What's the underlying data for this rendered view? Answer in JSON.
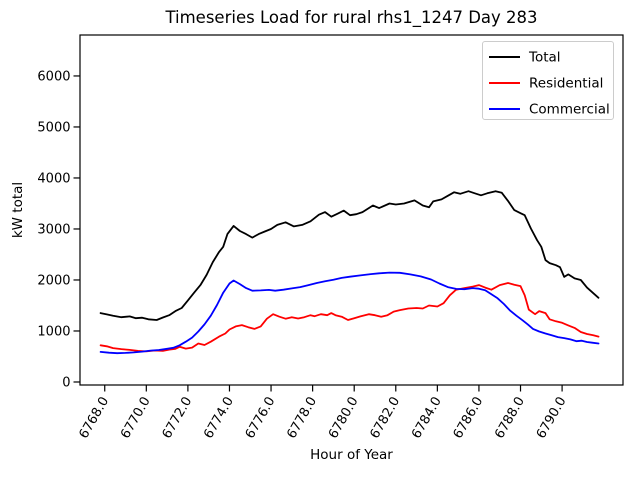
{
  "figure": {
    "title": "Timeseries Load for rural rhs1_1247  Day 283"
  },
  "chart_data": {
    "type": "line",
    "title": "Timeseries Load for rural rhs1_1247  Day 283",
    "xlabel": "Hour of Year",
    "ylabel": "kW total",
    "xlim": [
      6766.81,
      6792.93
    ],
    "ylim": [
      -59,
      6803
    ],
    "grid": false,
    "x_ticks": [
      6768,
      6770,
      6772,
      6774,
      6776,
      6778,
      6780,
      6782,
      6784,
      6786,
      6788,
      6790
    ],
    "x_tick_labels": [
      "6768.0",
      "6770.0",
      "6772.0",
      "6774.0",
      "6776.0",
      "6778.0",
      "6780.0",
      "6782.0",
      "6784.0",
      "6786.0",
      "6788.0",
      "6790.0"
    ],
    "y_ticks": [
      0,
      1000,
      2000,
      3000,
      4000,
      5000,
      6000
    ],
    "y_tick_labels": [
      "0",
      "1000",
      "2000",
      "3000",
      "4000",
      "5000",
      "6000"
    ],
    "legend": {
      "position": "upper right",
      "entries": [
        {
          "label": "Total",
          "color": "#000000"
        },
        {
          "label": "Residential",
          "color": "#ff0000"
        },
        {
          "label": "Commercial",
          "color": "#0000ff"
        }
      ]
    },
    "series": [
      {
        "name": "Total",
        "color": "#000000",
        "points": [
          [
            6767.8,
            1350
          ],
          [
            6768.1,
            1325
          ],
          [
            6768.4,
            1300
          ],
          [
            6768.8,
            1270
          ],
          [
            6769.2,
            1285
          ],
          [
            6769.5,
            1250
          ],
          [
            6769.8,
            1260
          ],
          [
            6770.1,
            1230
          ],
          [
            6770.5,
            1215
          ],
          [
            6770.8,
            1265
          ],
          [
            6771.1,
            1310
          ],
          [
            6771.4,
            1390
          ],
          [
            6771.7,
            1450
          ],
          [
            6772.0,
            1600
          ],
          [
            6772.3,
            1750
          ],
          [
            6772.6,
            1900
          ],
          [
            6772.9,
            2100
          ],
          [
            6773.2,
            2350
          ],
          [
            6773.5,
            2550
          ],
          [
            6773.7,
            2650
          ],
          [
            6773.9,
            2900
          ],
          [
            6774.2,
            3060
          ],
          [
            6774.5,
            2960
          ],
          [
            6774.8,
            2900
          ],
          [
            6775.1,
            2830
          ],
          [
            6775.4,
            2900
          ],
          [
            6775.7,
            2950
          ],
          [
            6776.0,
            3000
          ],
          [
            6776.3,
            3080
          ],
          [
            6776.7,
            3130
          ],
          [
            6777.1,
            3050
          ],
          [
            6777.5,
            3080
          ],
          [
            6777.9,
            3150
          ],
          [
            6778.3,
            3280
          ],
          [
            6778.6,
            3330
          ],
          [
            6778.9,
            3240
          ],
          [
            6779.2,
            3300
          ],
          [
            6779.5,
            3360
          ],
          [
            6779.8,
            3270
          ],
          [
            6780.1,
            3290
          ],
          [
            6780.4,
            3330
          ],
          [
            6780.9,
            3460
          ],
          [
            6781.2,
            3410
          ],
          [
            6781.7,
            3500
          ],
          [
            6782.0,
            3480
          ],
          [
            6782.4,
            3500
          ],
          [
            6782.9,
            3560
          ],
          [
            6783.3,
            3460
          ],
          [
            6783.6,
            3425
          ],
          [
            6783.8,
            3540
          ],
          [
            6784.2,
            3580
          ],
          [
            6784.5,
            3650
          ],
          [
            6784.8,
            3720
          ],
          [
            6785.1,
            3690
          ],
          [
            6785.5,
            3740
          ],
          [
            6785.8,
            3700
          ],
          [
            6786.1,
            3660
          ],
          [
            6786.4,
            3700
          ],
          [
            6786.8,
            3740
          ],
          [
            6787.1,
            3710
          ],
          [
            6787.4,
            3550
          ],
          [
            6787.7,
            3370
          ],
          [
            6788.0,
            3310
          ],
          [
            6788.2,
            3270
          ],
          [
            6788.5,
            3010
          ],
          [
            6788.8,
            2780
          ],
          [
            6789.0,
            2650
          ],
          [
            6789.2,
            2390
          ],
          [
            6789.4,
            2330
          ],
          [
            6789.7,
            2290
          ],
          [
            6789.9,
            2250
          ],
          [
            6790.1,
            2060
          ],
          [
            6790.3,
            2110
          ],
          [
            6790.6,
            2030
          ],
          [
            6790.9,
            2000
          ],
          [
            6791.2,
            1850
          ],
          [
            6791.5,
            1740
          ],
          [
            6791.75,
            1650
          ]
        ]
      },
      {
        "name": "Residential",
        "color": "#ff0000",
        "points": [
          [
            6767.8,
            720
          ],
          [
            6768.1,
            700
          ],
          [
            6768.4,
            665
          ],
          [
            6768.8,
            645
          ],
          [
            6769.2,
            630
          ],
          [
            6769.6,
            610
          ],
          [
            6770.0,
            600
          ],
          [
            6770.4,
            618
          ],
          [
            6770.8,
            610
          ],
          [
            6771.1,
            635
          ],
          [
            6771.4,
            650
          ],
          [
            6771.6,
            690
          ],
          [
            6771.9,
            655
          ],
          [
            6772.2,
            675
          ],
          [
            6772.5,
            755
          ],
          [
            6772.8,
            725
          ],
          [
            6773.1,
            790
          ],
          [
            6773.5,
            890
          ],
          [
            6773.8,
            950
          ],
          [
            6774.0,
            1030
          ],
          [
            6774.3,
            1090
          ],
          [
            6774.6,
            1115
          ],
          [
            6774.9,
            1075
          ],
          [
            6775.2,
            1040
          ],
          [
            6775.5,
            1090
          ],
          [
            6775.8,
            1240
          ],
          [
            6776.1,
            1330
          ],
          [
            6776.4,
            1280
          ],
          [
            6776.7,
            1240
          ],
          [
            6777.0,
            1270
          ],
          [
            6777.3,
            1245
          ],
          [
            6777.6,
            1270
          ],
          [
            6777.9,
            1310
          ],
          [
            6778.1,
            1290
          ],
          [
            6778.4,
            1330
          ],
          [
            6778.7,
            1310
          ],
          [
            6778.9,
            1350
          ],
          [
            6779.1,
            1310
          ],
          [
            6779.4,
            1280
          ],
          [
            6779.7,
            1215
          ],
          [
            6780.0,
            1250
          ],
          [
            6780.3,
            1285
          ],
          [
            6780.7,
            1330
          ],
          [
            6781.0,
            1310
          ],
          [
            6781.3,
            1280
          ],
          [
            6781.6,
            1310
          ],
          [
            6781.9,
            1380
          ],
          [
            6782.2,
            1410
          ],
          [
            6782.6,
            1440
          ],
          [
            6783.0,
            1450
          ],
          [
            6783.3,
            1440
          ],
          [
            6783.6,
            1500
          ],
          [
            6784.0,
            1480
          ],
          [
            6784.3,
            1545
          ],
          [
            6784.6,
            1700
          ],
          [
            6784.9,
            1810
          ],
          [
            6785.3,
            1840
          ],
          [
            6785.7,
            1870
          ],
          [
            6786.0,
            1900
          ],
          [
            6786.3,
            1850
          ],
          [
            6786.6,
            1810
          ],
          [
            6787.0,
            1900
          ],
          [
            6787.4,
            1940
          ],
          [
            6787.7,
            1905
          ],
          [
            6788.0,
            1880
          ],
          [
            6788.2,
            1700
          ],
          [
            6788.4,
            1420
          ],
          [
            6788.7,
            1330
          ],
          [
            6788.9,
            1390
          ],
          [
            6789.2,
            1350
          ],
          [
            6789.4,
            1230
          ],
          [
            6789.7,
            1190
          ],
          [
            6790.0,
            1160
          ],
          [
            6790.3,
            1110
          ],
          [
            6790.6,
            1060
          ],
          [
            6790.9,
            980
          ],
          [
            6791.2,
            940
          ],
          [
            6791.5,
            915
          ],
          [
            6791.75,
            890
          ]
        ]
      },
      {
        "name": "Commercial",
        "color": "#0000ff",
        "points": [
          [
            6767.8,
            590
          ],
          [
            6768.2,
            575
          ],
          [
            6768.6,
            565
          ],
          [
            6769.0,
            570
          ],
          [
            6769.4,
            580
          ],
          [
            6769.8,
            595
          ],
          [
            6770.2,
            615
          ],
          [
            6770.6,
            628
          ],
          [
            6771.0,
            650
          ],
          [
            6771.3,
            670
          ],
          [
            6771.6,
            720
          ],
          [
            6771.9,
            790
          ],
          [
            6772.2,
            870
          ],
          [
            6772.5,
            990
          ],
          [
            6772.8,
            1130
          ],
          [
            6773.1,
            1300
          ],
          [
            6773.4,
            1510
          ],
          [
            6773.7,
            1750
          ],
          [
            6774.0,
            1930
          ],
          [
            6774.2,
            1990
          ],
          [
            6774.5,
            1920
          ],
          [
            6774.8,
            1840
          ],
          [
            6775.1,
            1790
          ],
          [
            6775.5,
            1795
          ],
          [
            6775.9,
            1805
          ],
          [
            6776.2,
            1790
          ],
          [
            6776.6,
            1810
          ],
          [
            6777.0,
            1835
          ],
          [
            6777.4,
            1860
          ],
          [
            6777.8,
            1900
          ],
          [
            6778.2,
            1940
          ],
          [
            6778.6,
            1975
          ],
          [
            6779.0,
            2005
          ],
          [
            6779.4,
            2040
          ],
          [
            6779.8,
            2065
          ],
          [
            6780.3,
            2090
          ],
          [
            6780.8,
            2115
          ],
          [
            6781.2,
            2130
          ],
          [
            6781.7,
            2145
          ],
          [
            6782.2,
            2140
          ],
          [
            6782.7,
            2110
          ],
          [
            6783.2,
            2070
          ],
          [
            6783.7,
            2010
          ],
          [
            6784.1,
            1930
          ],
          [
            6784.5,
            1860
          ],
          [
            6784.9,
            1825
          ],
          [
            6785.3,
            1820
          ],
          [
            6785.7,
            1840
          ],
          [
            6786.0,
            1830
          ],
          [
            6786.3,
            1800
          ],
          [
            6786.6,
            1720
          ],
          [
            6786.9,
            1640
          ],
          [
            6787.2,
            1530
          ],
          [
            6787.5,
            1400
          ],
          [
            6787.8,
            1300
          ],
          [
            6788.1,
            1210
          ],
          [
            6788.35,
            1130
          ],
          [
            6788.6,
            1040
          ],
          [
            6788.9,
            990
          ],
          [
            6789.2,
            950
          ],
          [
            6789.5,
            915
          ],
          [
            6789.8,
            880
          ],
          [
            6790.1,
            860
          ],
          [
            6790.4,
            835
          ],
          [
            6790.7,
            800
          ],
          [
            6790.95,
            810
          ],
          [
            6791.2,
            785
          ],
          [
            6791.45,
            770
          ],
          [
            6791.75,
            755
          ]
        ]
      }
    ]
  }
}
